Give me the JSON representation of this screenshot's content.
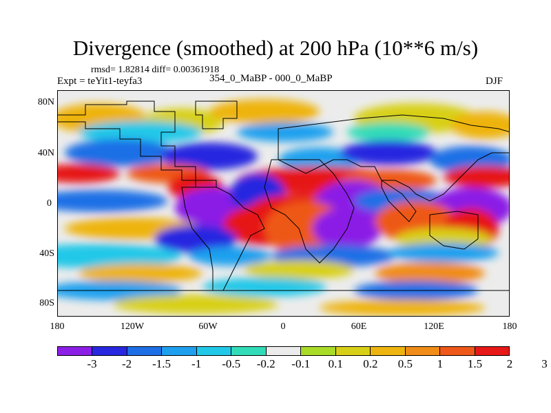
{
  "title": "Divergence (smoothed) at 200 hPa (10**6 m/s)",
  "stats": "rmsd= 1.82814 diff= 0.00361918",
  "experiment": "Expt = teYit1-teyfa3",
  "period": "354_0_MaBP - 000_0_MaBP",
  "season": "DJF",
  "lat_labels": [
    "80N",
    "40N",
    "0",
    "40S",
    "80S"
  ],
  "lon_labels": [
    "180",
    "120W",
    "60W",
    "0",
    "60E",
    "120E",
    "180"
  ],
  "colorbar": {
    "colors": [
      "#8b1fe6",
      "#2828e0",
      "#1e6fe6",
      "#1ea0ee",
      "#22c8e8",
      "#32dcb8",
      "#ececec",
      "#a8dc28",
      "#d8d018",
      "#eeb410",
      "#f08c18",
      "#ee5818",
      "#e61818"
    ],
    "labels": [
      "-3",
      "-2",
      "-1.5",
      "-1",
      "-0.5",
      "-0.2",
      "-0.1",
      "0.1",
      "0.2",
      "0.5",
      "1",
      "1.5",
      "2",
      "3"
    ]
  },
  "palette": {
    "neutral": "#ececec",
    "land_outline": "#000000"
  }
}
